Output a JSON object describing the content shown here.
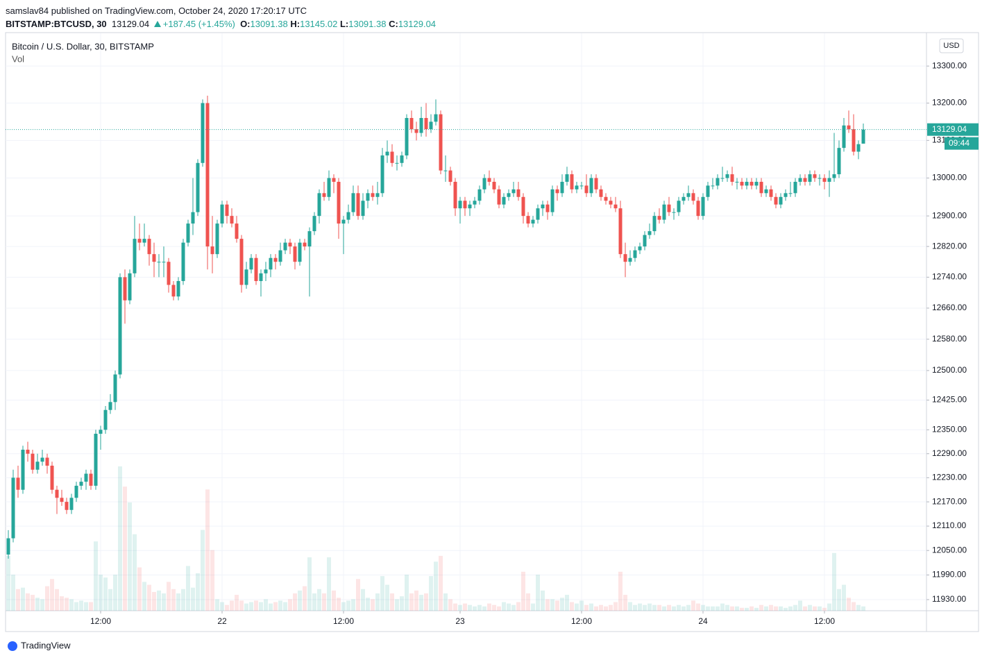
{
  "header": {
    "published": "samslav84 published on TradingView.com, October 24, 2020 17:20:17 UTC",
    "symbol": "BITSTAMP:BTCUSD, 30",
    "price": "13129.04",
    "change": "+187.45 (+1.45%)",
    "o_label": "O:",
    "o": "13091.38",
    "h_label": "H:",
    "h": "13145.02",
    "l_label": "L:",
    "l": "13091.38",
    "c_label": "C:",
    "c": "13129.04"
  },
  "footer": {
    "logo": "TradingView"
  },
  "chart_data": {
    "type": "candlestick",
    "title": "Bitcoin / U.S. Dollar, 30, BITSTAMP",
    "volume_label": "Vol",
    "currency": "USD",
    "log_scale": true,
    "grid": true,
    "up_color": "#26a69a",
    "down_color": "#ef5350",
    "ylim": [
      11903,
      13389
    ],
    "yticks": [
      {
        "value": 13300,
        "label": "13300.00"
      },
      {
        "value": 13200,
        "label": "13200.00"
      },
      {
        "value": 13100,
        "label": "13100.00"
      },
      {
        "value": 13000,
        "label": "13000.00"
      },
      {
        "value": 12900,
        "label": "12900.00"
      },
      {
        "value": 12820,
        "label": "12820.00"
      },
      {
        "value": 12740,
        "label": "12740.00"
      },
      {
        "value": 12660,
        "label": "12660.00"
      },
      {
        "value": 12580,
        "label": "12580.00"
      },
      {
        "value": 12500,
        "label": "12500.00"
      },
      {
        "value": 12425,
        "label": "12425.00"
      },
      {
        "value": 12350,
        "label": "12350.00"
      },
      {
        "value": 12290,
        "label": "12290.00"
      },
      {
        "value": 12230,
        "label": "12230.00"
      },
      {
        "value": 12170,
        "label": "12170.00"
      },
      {
        "value": 12110,
        "label": "12110.00"
      },
      {
        "value": 12050,
        "label": "12050.00"
      },
      {
        "value": 11990,
        "label": "11990.00"
      },
      {
        "value": 11930,
        "label": "11930.00"
      }
    ],
    "y2lim": [
      0,
      4000
    ],
    "xticks": [
      {
        "value": 19,
        "label": "12:00"
      },
      {
        "value": 44,
        "label": "22"
      },
      {
        "value": 69,
        "label": "12:00"
      },
      {
        "value": 93,
        "label": "23"
      },
      {
        "value": 118,
        "label": "12:00"
      },
      {
        "value": 143,
        "label": "24"
      },
      {
        "value": 168,
        "label": "12:00"
      }
    ],
    "last_price": {
      "value": 13129.04,
      "label": "13129.04"
    },
    "countdown": "09:44",
    "candle_fields": [
      "open",
      "high",
      "low",
      "close",
      "volume"
    ],
    "candles": [
      [
        12040,
        12100,
        12030,
        12080,
        380
      ],
      [
        12080,
        12250,
        12070,
        12230,
        250
      ],
      [
        12230,
        12260,
        12180,
        12200,
        150
      ],
      [
        12200,
        12310,
        12190,
        12300,
        160
      ],
      [
        12300,
        12320,
        12270,
        12290,
        120
      ],
      [
        12290,
        12300,
        12240,
        12250,
        110
      ],
      [
        12250,
        12290,
        12240,
        12270,
        90
      ],
      [
        12270,
        12300,
        12260,
        12280,
        80
      ],
      [
        12280,
        12290,
        12240,
        12260,
        170
      ],
      [
        12260,
        12270,
        12190,
        12200,
        220
      ],
      [
        12200,
        12210,
        12140,
        12180,
        150
      ],
      [
        12180,
        12200,
        12160,
        12170,
        100
      ],
      [
        12170,
        12180,
        12140,
        12150,
        90
      ],
      [
        12150,
        12190,
        12140,
        12180,
        80
      ],
      [
        12180,
        12220,
        12170,
        12210,
        60
      ],
      [
        12210,
        12230,
        12200,
        12220,
        70
      ],
      [
        12220,
        12250,
        12200,
        12240,
        60
      ],
      [
        12240,
        12250,
        12200,
        12210,
        60
      ],
      [
        12210,
        12350,
        12200,
        12340,
        480
      ],
      [
        12340,
        12360,
        12300,
        12350,
        250
      ],
      [
        12350,
        12410,
        12340,
        12400,
        230
      ],
      [
        12400,
        12440,
        12390,
        12420,
        150
      ],
      [
        12420,
        12500,
        12400,
        12490,
        250
      ],
      [
        12490,
        12750,
        12480,
        12740,
        1000
      ],
      [
        12740,
        12760,
        12620,
        12680,
        860
      ],
      [
        12680,
        12760,
        12670,
        12750,
        750
      ],
      [
        12750,
        12900,
        12740,
        12840,
        530
      ],
      [
        12840,
        12880,
        12810,
        12830,
        300
      ],
      [
        12830,
        12880,
        12820,
        12840,
        200
      ],
      [
        12840,
        12850,
        12770,
        12800,
        180
      ],
      [
        12800,
        12830,
        12740,
        12780,
        130
      ],
      [
        12780,
        12800,
        12740,
        12780,
        140
      ],
      [
        12780,
        12820,
        12740,
        12780,
        120
      ],
      [
        12780,
        12790,
        12700,
        12720,
        200
      ],
      [
        12720,
        12730,
        12680,
        12690,
        150
      ],
      [
        12690,
        12740,
        12680,
        12730,
        120
      ],
      [
        12730,
        12840,
        12720,
        12830,
        150
      ],
      [
        12830,
        12890,
        12820,
        12880,
        310
      ],
      [
        12880,
        13000,
        12850,
        12910,
        160
      ],
      [
        12910,
        13050,
        12900,
        13040,
        260
      ],
      [
        13040,
        13210,
        13030,
        13200,
        560
      ],
      [
        13200,
        13220,
        12760,
        12820,
        840
      ],
      [
        12820,
        12900,
        12750,
        12800,
        420
      ],
      [
        12800,
        12890,
        12790,
        12880,
        80
      ],
      [
        12880,
        12940,
        12870,
        12930,
        60
      ],
      [
        12930,
        12940,
        12880,
        12900,
        40
      ],
      [
        12900,
        12920,
        12870,
        12880,
        70
      ],
      [
        12880,
        12900,
        12830,
        12840,
        110
      ],
      [
        12840,
        12850,
        12700,
        12720,
        70
      ],
      [
        12720,
        12780,
        12710,
        12760,
        50
      ],
      [
        12760,
        12800,
        12750,
        12790,
        60
      ],
      [
        12790,
        12800,
        12720,
        12730,
        70
      ],
      [
        12730,
        12760,
        12690,
        12750,
        60
      ],
      [
        12750,
        12780,
        12730,
        12760,
        80
      ],
      [
        12760,
        12800,
        12740,
        12790,
        50
      ],
      [
        12790,
        12800,
        12760,
        12780,
        60
      ],
      [
        12780,
        12830,
        12770,
        12810,
        70
      ],
      [
        12810,
        12840,
        12800,
        12830,
        60
      ],
      [
        12830,
        12840,
        12800,
        12820,
        80
      ],
      [
        12820,
        12830,
        12760,
        12780,
        120
      ],
      [
        12780,
        12840,
        12770,
        12830,
        140
      ],
      [
        12830,
        12840,
        12810,
        12820,
        170
      ],
      [
        12820,
        12870,
        12690,
        12860,
        370
      ],
      [
        12860,
        12910,
        12850,
        12900,
        120
      ],
      [
        12900,
        12970,
        12880,
        12960,
        150
      ],
      [
        12960,
        12990,
        12940,
        12950,
        120
      ],
      [
        12950,
        13020,
        12940,
        13000,
        370
      ],
      [
        13000,
        13010,
        12960,
        12990,
        140
      ],
      [
        12990,
        13000,
        12840,
        12880,
        90
      ],
      [
        12880,
        12900,
        12800,
        12890,
        60
      ],
      [
        12890,
        12930,
        12880,
        12910,
        70
      ],
      [
        12910,
        12980,
        12900,
        12960,
        80
      ],
      [
        12960,
        12980,
        12890,
        12900,
        220
      ],
      [
        12900,
        12960,
        12890,
        12940,
        150
      ],
      [
        12940,
        12970,
        12920,
        12960,
        90
      ],
      [
        12960,
        12980,
        12940,
        12950,
        80
      ],
      [
        12950,
        12990,
        12930,
        12960,
        120
      ],
      [
        12960,
        13080,
        12950,
        13060,
        240
      ],
      [
        13060,
        13100,
        13040,
        13070,
        180
      ],
      [
        13070,
        13090,
        13030,
        13040,
        120
      ],
      [
        13040,
        13060,
        13020,
        13040,
        80
      ],
      [
        13040,
        13070,
        13030,
        13060,
        100
      ],
      [
        13060,
        13170,
        13050,
        13160,
        250
      ],
      [
        13160,
        13180,
        13120,
        13130,
        120
      ],
      [
        13130,
        13150,
        13100,
        13120,
        140
      ],
      [
        13120,
        13190,
        13110,
        13160,
        110
      ],
      [
        13160,
        13200,
        13110,
        13130,
        120
      ],
      [
        13130,
        13170,
        13120,
        13150,
        240
      ],
      [
        13150,
        13210,
        13140,
        13170,
        340
      ],
      [
        13170,
        13180,
        13010,
        13020,
        380
      ],
      [
        13020,
        13060,
        12990,
        13020,
        120
      ],
      [
        13020,
        13030,
        12980,
        12990,
        80
      ],
      [
        12990,
        13000,
        12900,
        12920,
        50
      ],
      [
        12920,
        12950,
        12880,
        12940,
        40
      ],
      [
        12940,
        12950,
        12900,
        12920,
        50
      ],
      [
        12920,
        12940,
        12900,
        12930,
        40
      ],
      [
        12930,
        12950,
        12920,
        12940,
        30
      ],
      [
        12940,
        12980,
        12930,
        12970,
        40
      ],
      [
        12970,
        13010,
        12960,
        13000,
        30
      ],
      [
        13000,
        13020,
        12980,
        12990,
        50
      ],
      [
        12990,
        13000,
        12960,
        12970,
        40
      ],
      [
        12970,
        12980,
        12920,
        12930,
        30
      ],
      [
        12930,
        12960,
        12920,
        12950,
        60
      ],
      [
        12950,
        12970,
        12940,
        12960,
        50
      ],
      [
        12960,
        12990,
        12950,
        12970,
        40
      ],
      [
        12970,
        12990,
        12940,
        12950,
        60
      ],
      [
        12950,
        12960,
        12880,
        12900,
        270
      ],
      [
        12900,
        12910,
        12870,
        12880,
        120
      ],
      [
        12880,
        12900,
        12870,
        12890,
        50
      ],
      [
        12890,
        12930,
        12880,
        12920,
        250
      ],
      [
        12920,
        12940,
        12900,
        12930,
        140
      ],
      [
        12930,
        12940,
        12890,
        12910,
        80
      ],
      [
        12910,
        12980,
        12900,
        12970,
        80
      ],
      [
        12970,
        12980,
        12940,
        12960,
        70
      ],
      [
        12960,
        13010,
        12950,
        12990,
        90
      ],
      [
        12990,
        13030,
        12980,
        13010,
        110
      ],
      [
        13010,
        13020,
        12960,
        12970,
        60
      ],
      [
        12970,
        12990,
        12960,
        12980,
        50
      ],
      [
        12980,
        12990,
        12970,
        12980,
        70
      ],
      [
        12980,
        13010,
        12950,
        12960,
        40
      ],
      [
        12960,
        13010,
        12950,
        13000,
        50
      ],
      [
        13000,
        13010,
        12960,
        12970,
        30
      ],
      [
        12970,
        12980,
        12940,
        12950,
        40
      ],
      [
        12950,
        12960,
        12930,
        12940,
        30
      ],
      [
        12940,
        12950,
        12920,
        12930,
        40
      ],
      [
        12930,
        12950,
        12910,
        12920,
        60
      ],
      [
        12920,
        12940,
        12790,
        12800,
        270
      ],
      [
        12800,
        12830,
        12740,
        12780,
        110
      ],
      [
        12780,
        12810,
        12770,
        12790,
        60
      ],
      [
        12790,
        12820,
        12780,
        12810,
        40
      ],
      [
        12810,
        12830,
        12800,
        12820,
        50
      ],
      [
        12820,
        12860,
        12810,
        12850,
        40
      ],
      [
        12850,
        12880,
        12840,
        12860,
        50
      ],
      [
        12860,
        12910,
        12850,
        12900,
        40
      ],
      [
        12900,
        12920,
        12880,
        12890,
        40
      ],
      [
        12890,
        12940,
        12880,
        12930,
        30
      ],
      [
        12930,
        12950,
        12900,
        12910,
        40
      ],
      [
        12910,
        12920,
        12890,
        12910,
        30
      ],
      [
        12910,
        12950,
        12900,
        12940,
        40
      ],
      [
        12940,
        12960,
        12930,
        12950,
        30
      ],
      [
        12950,
        12980,
        12940,
        12960,
        40
      ],
      [
        12960,
        12970,
        12930,
        12940,
        70
      ],
      [
        12940,
        12950,
        12890,
        12900,
        50
      ],
      [
        12900,
        12960,
        12890,
        12950,
        40
      ],
      [
        12950,
        12990,
        12940,
        12980,
        30
      ],
      [
        12980,
        13000,
        12970,
        12980,
        30
      ],
      [
        12980,
        13010,
        12970,
        13000,
        30
      ],
      [
        13000,
        13030,
        12990,
        13000,
        50
      ],
      [
        13000,
        13020,
        12990,
        13010,
        40
      ],
      [
        13010,
        13030,
        12980,
        12990,
        30
      ],
      [
        12990,
        13000,
        12970,
        12990,
        30
      ],
      [
        12990,
        13000,
        12970,
        12980,
        20
      ],
      [
        12980,
        13000,
        12970,
        12990,
        20
      ],
      [
        12990,
        13000,
        12970,
        12980,
        30
      ],
      [
        12980,
        13000,
        12970,
        12990,
        20
      ],
      [
        12990,
        13000,
        12950,
        12960,
        40
      ],
      [
        12960,
        12980,
        12950,
        12970,
        30
      ],
      [
        12970,
        12980,
        12940,
        12950,
        40
      ],
      [
        12950,
        12960,
        12920,
        12930,
        30
      ],
      [
        12930,
        12960,
        12920,
        12950,
        30
      ],
      [
        12950,
        12970,
        12940,
        12960,
        20
      ],
      [
        12960,
        12990,
        12950,
        12960,
        30
      ],
      [
        12960,
        13000,
        12950,
        12990,
        40
      ],
      [
        12990,
        13010,
        12980,
        13000,
        70
      ],
      [
        13000,
        13010,
        12980,
        12990,
        30
      ],
      [
        12990,
        13020,
        12980,
        13010,
        40
      ],
      [
        13010,
        13020,
        12990,
        13000,
        30
      ],
      [
        13000,
        13010,
        12980,
        13000,
        30
      ],
      [
        13000,
        13010,
        12970,
        12990,
        20
      ],
      [
        12990,
        13020,
        12950,
        13000,
        50
      ],
      [
        13000,
        13120,
        12990,
        13010,
        400
      ],
      [
        13010,
        13100,
        13000,
        13080,
        150
      ],
      [
        13080,
        13160,
        13070,
        13140,
        180
      ],
      [
        13140,
        13180,
        13120,
        13130,
        90
      ],
      [
        13130,
        13170,
        13060,
        13070,
        60
      ],
      [
        13070,
        13100,
        13050,
        13090,
        40
      ],
      [
        13091.38,
        13145.02,
        13091.38,
        13129.04,
        30
      ]
    ]
  }
}
